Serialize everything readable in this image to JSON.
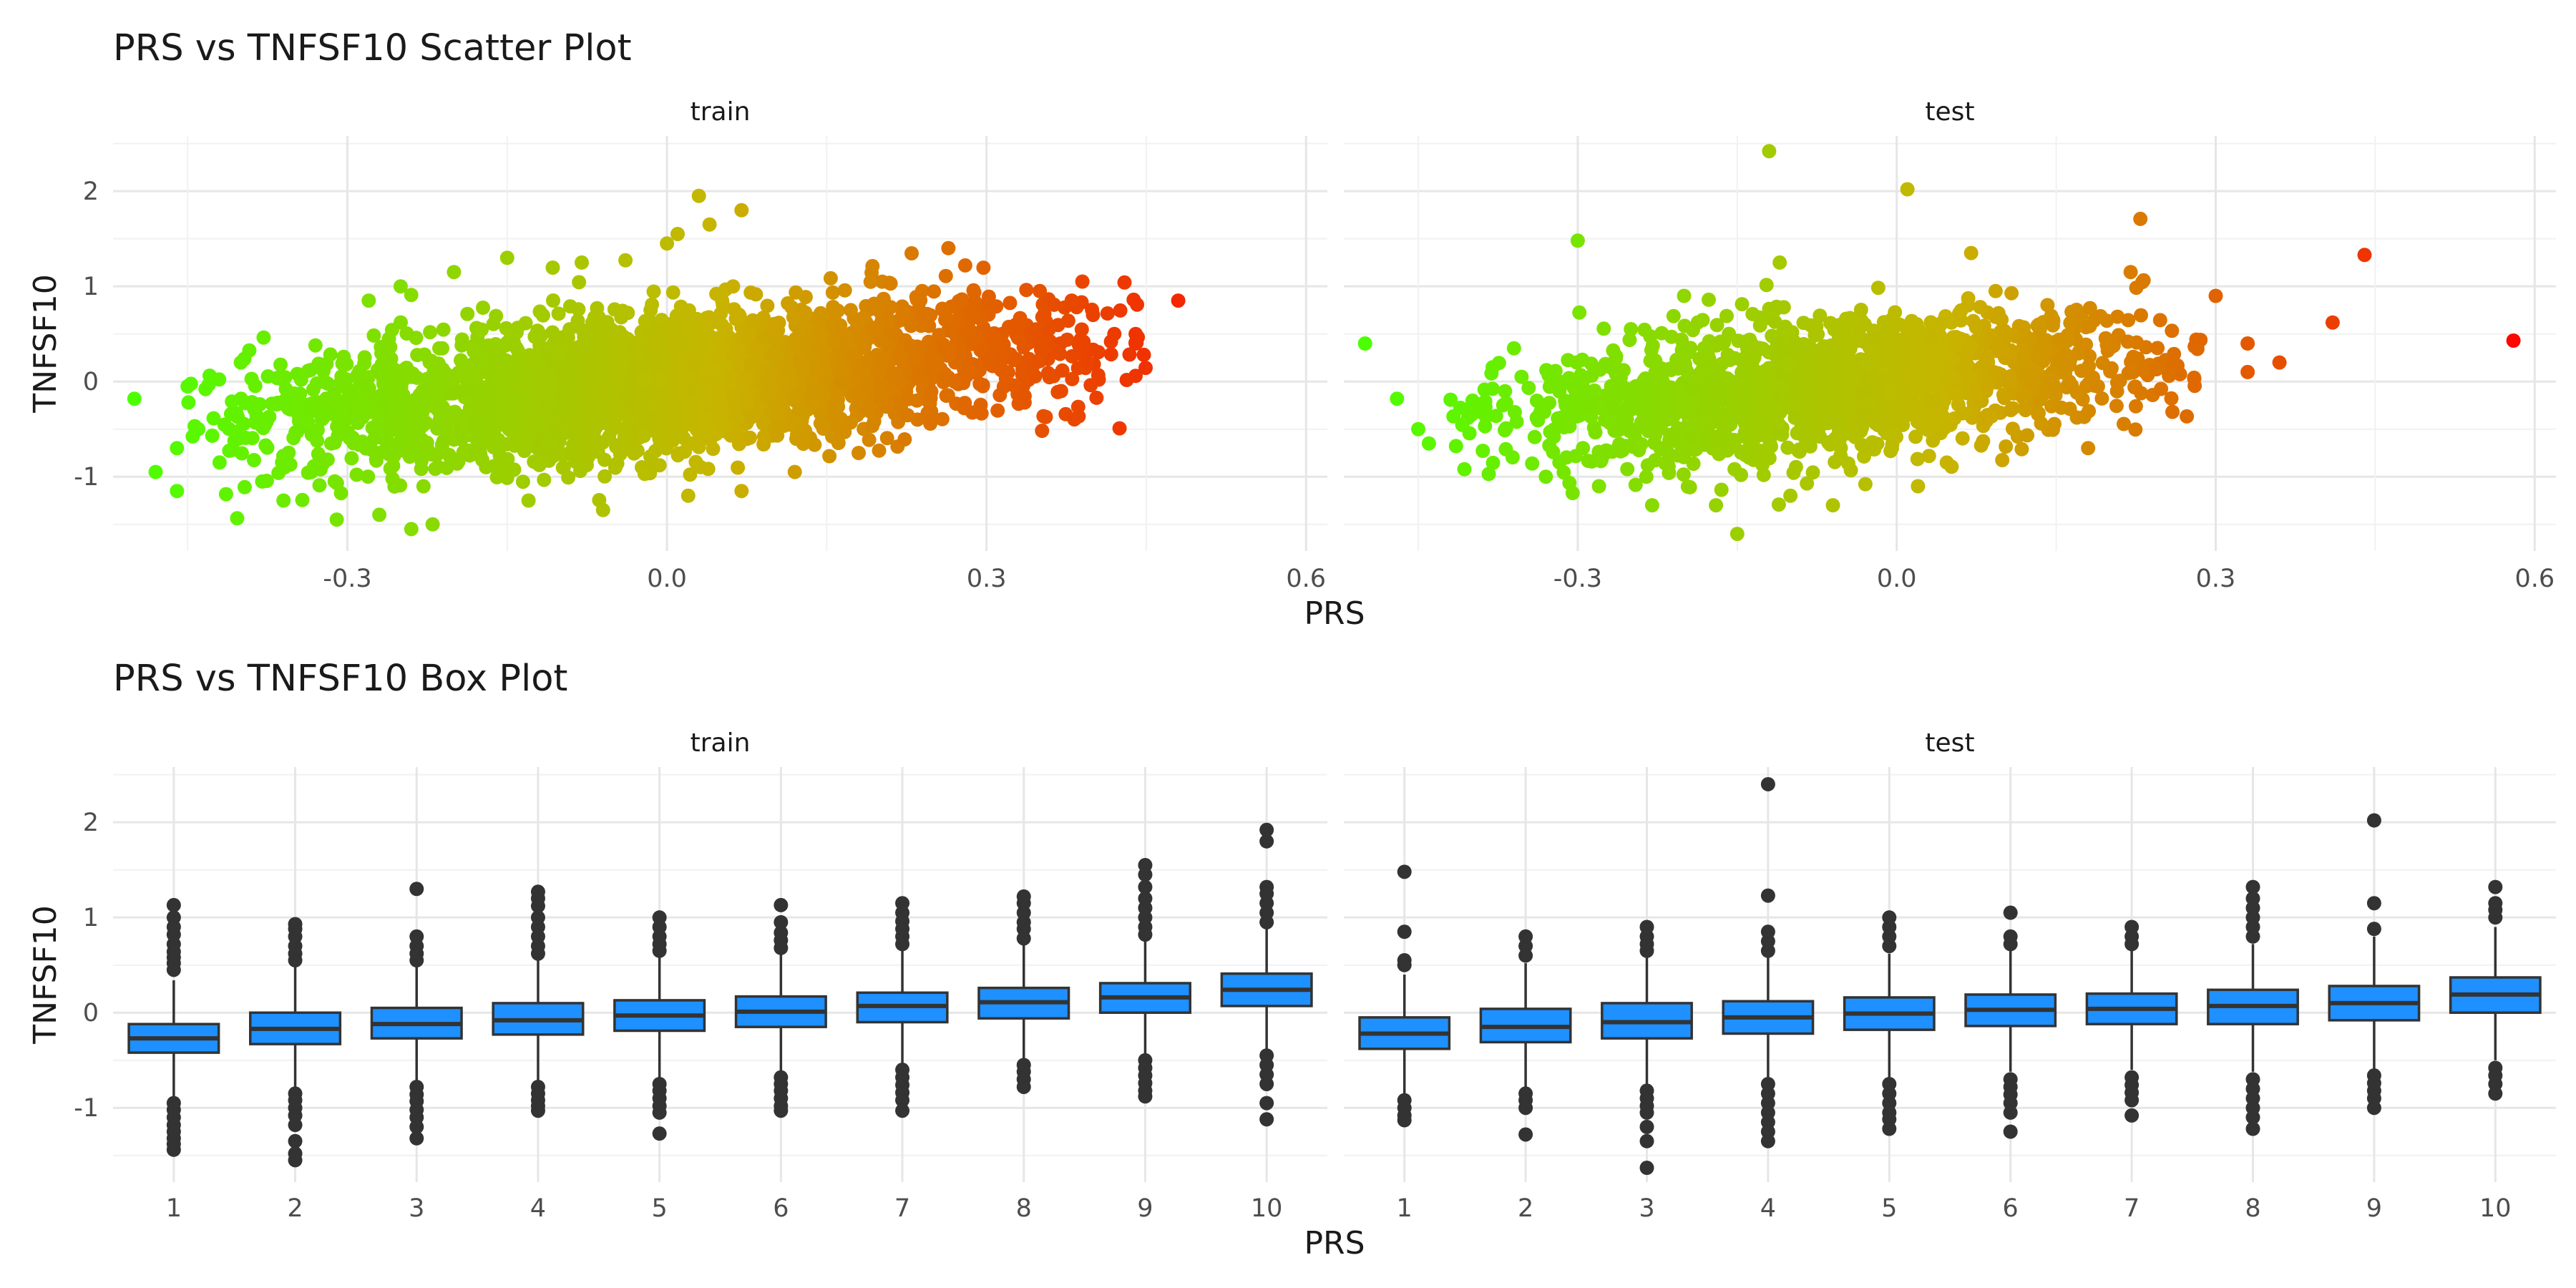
{
  "chart_data": [
    {
      "type": "scatter",
      "title": "PRS vs TNFSF10 Scatter Plot",
      "xlabel": "PRS",
      "ylabel": "TNFSF10",
      "facets": [
        "train",
        "test"
      ],
      "xlim": [
        -0.52,
        0.62
      ],
      "ylim": [
        -1.78,
        2.58
      ],
      "x_ticks": [
        -0.3,
        0.0,
        0.3,
        0.6
      ],
      "x_tick_labels": [
        "-0.3",
        "0.0",
        "0.3",
        "0.6"
      ],
      "y_ticks": [
        -1,
        0,
        1,
        2
      ],
      "y_tick_labels": [
        "-1",
        "0",
        "1",
        "2"
      ],
      "color_scale": {
        "low": "#4cff00",
        "mid": "#c8b400",
        "high": "#ff0000",
        "range": [
          -0.5,
          0.6
        ]
      },
      "grid": true,
      "legend": "none",
      "series": [
        {
          "name": "train",
          "points": [
            [
              -0.5,
              -0.18
            ],
            [
              -0.48,
              -0.95
            ],
            [
              -0.46,
              -1.15
            ],
            [
              -0.46,
              -0.7
            ],
            [
              -0.45,
              -0.05
            ],
            [
              -0.44,
              -0.5
            ],
            [
              -0.42,
              -0.85
            ],
            [
              -0.4,
              0.2
            ],
            [
              -0.38,
              -1.05
            ],
            [
              -0.36,
              -1.25
            ],
            [
              -0.33,
              0.38
            ],
            [
              -0.31,
              -1.45
            ],
            [
              -0.28,
              0.85
            ],
            [
              -0.27,
              -1.4
            ],
            [
              -0.25,
              1.0
            ],
            [
              -0.24,
              -1.55
            ],
            [
              -0.22,
              -1.5
            ],
            [
              -0.2,
              1.15
            ],
            [
              -0.15,
              1.3
            ],
            [
              -0.13,
              -1.25
            ],
            [
              -0.08,
              1.25
            ],
            [
              -0.06,
              -1.35
            ],
            [
              0.0,
              1.45
            ],
            [
              0.01,
              1.55
            ],
            [
              0.02,
              -1.2
            ],
            [
              0.03,
              1.95
            ],
            [
              0.04,
              1.65
            ],
            [
              0.07,
              1.8
            ],
            [
              0.07,
              -1.15
            ],
            [
              0.12,
              -0.95
            ],
            [
              0.18,
              -0.75
            ],
            [
              0.28,
              1.22
            ],
            [
              0.35,
              0.95
            ],
            [
              0.37,
              -0.1
            ],
            [
              0.38,
              0.85
            ],
            [
              0.39,
              1.05
            ],
            [
              0.4,
              0.7
            ],
            [
              0.42,
              0.5
            ],
            [
              0.44,
              0.4
            ],
            [
              0.44,
              0.5
            ],
            [
              0.48,
              0.85
            ]
          ],
          "cloud": {
            "x_range": [
              -0.45,
              0.45
            ],
            "y_center_at_x0": -0.02,
            "slope": 1.0,
            "y_spread": 0.35,
            "n_points": 2800
          }
        },
        {
          "name": "test",
          "points": [
            [
              -0.5,
              0.4
            ],
            [
              -0.47,
              -0.18
            ],
            [
              -0.45,
              -0.5
            ],
            [
              -0.44,
              -0.65
            ],
            [
              -0.4,
              -0.35
            ],
            [
              -0.38,
              0.15
            ],
            [
              -0.36,
              0.35
            ],
            [
              -0.33,
              -1.0
            ],
            [
              -0.3,
              1.48
            ],
            [
              -0.28,
              -1.1
            ],
            [
              -0.25,
              0.55
            ],
            [
              -0.23,
              -1.3
            ],
            [
              -0.2,
              0.9
            ],
            [
              -0.17,
              -1.3
            ],
            [
              -0.15,
              -1.6
            ],
            [
              -0.12,
              2.42
            ],
            [
              -0.11,
              1.25
            ],
            [
              -0.1,
              -1.2
            ],
            [
              -0.06,
              -1.3
            ],
            [
              0.01,
              2.02
            ],
            [
              0.02,
              -1.1
            ],
            [
              0.07,
              1.35
            ],
            [
              0.18,
              -0.7
            ],
            [
              0.22,
              1.15
            ],
            [
              0.3,
              0.9
            ],
            [
              0.33,
              0.4
            ],
            [
              0.33,
              0.1
            ],
            [
              0.36,
              0.2
            ],
            [
              0.41,
              0.62
            ],
            [
              0.44,
              1.33
            ],
            [
              0.58,
              0.43
            ]
          ],
          "cloud": {
            "x_range": [
              -0.42,
              0.3
            ],
            "y_center_at_x0": -0.02,
            "slope": 1.0,
            "y_spread": 0.35,
            "n_points": 1600
          }
        }
      ]
    },
    {
      "type": "box",
      "title": "PRS vs TNFSF10 Box Plot",
      "xlabel": "PRS",
      "ylabel": "TNFSF10",
      "facets": [
        "train",
        "test"
      ],
      "categories": [
        "1",
        "2",
        "3",
        "4",
        "5",
        "6",
        "7",
        "8",
        "9",
        "10"
      ],
      "ylim": [
        -1.78,
        2.58
      ],
      "y_ticks": [
        -1,
        0,
        1,
        2
      ],
      "y_tick_labels": [
        "-1",
        "0",
        "1",
        "2"
      ],
      "box_fill": "#1e90ff",
      "box_outline": "#333333",
      "grid": true,
      "series": [
        {
          "name": "train",
          "boxes": [
            {
              "q1": -0.42,
              "median": -0.27,
              "q3": -0.12,
              "whisker_low": -0.88,
              "whisker_high": 0.34,
              "outliers": [
                -0.95,
                -1.02,
                -1.1,
                -1.18,
                -1.25,
                -1.32,
                -1.38,
                -1.44,
                0.45,
                0.52,
                0.58,
                0.64,
                0.72,
                0.82,
                0.9,
                1.0,
                1.13
              ]
            },
            {
              "q1": -0.33,
              "median": -0.17,
              "q3": 0.0,
              "whisker_low": -0.8,
              "whisker_high": 0.48,
              "outliers": [
                -0.85,
                -0.92,
                -1.0,
                -1.08,
                -1.18,
                -1.35,
                -1.48,
                -1.55,
                0.55,
                0.62,
                0.7,
                0.8,
                0.88,
                0.93
              ]
            },
            {
              "q1": -0.27,
              "median": -0.12,
              "q3": 0.05,
              "whisker_low": -0.72,
              "whisker_high": 0.5,
              "outliers": [
                -0.78,
                -0.86,
                -0.93,
                -1.02,
                -1.1,
                -1.2,
                -1.32,
                0.55,
                0.62,
                0.7,
                0.8,
                1.3
              ]
            },
            {
              "q1": -0.23,
              "median": -0.08,
              "q3": 0.1,
              "whisker_low": -0.72,
              "whisker_high": 0.55,
              "outliers": [
                -0.78,
                -0.85,
                -0.92,
                -0.98,
                -1.03,
                0.62,
                0.7,
                0.8,
                0.9,
                1.0,
                1.12,
                1.2,
                1.27
              ]
            },
            {
              "q1": -0.19,
              "median": -0.03,
              "q3": 0.13,
              "whisker_low": -0.68,
              "whisker_high": 0.6,
              "outliers": [
                -0.75,
                -0.82,
                -0.9,
                -0.98,
                -1.05,
                -1.27,
                0.65,
                0.72,
                0.8,
                0.9,
                1.0
              ]
            },
            {
              "q1": -0.15,
              "median": 0.01,
              "q3": 0.17,
              "whisker_low": -0.62,
              "whisker_high": 0.62,
              "outliers": [
                -0.68,
                -0.75,
                -0.82,
                -0.9,
                -0.98,
                -1.03,
                0.68,
                0.76,
                0.84,
                0.95,
                1.13
              ]
            },
            {
              "q1": -0.1,
              "median": 0.07,
              "q3": 0.21,
              "whisker_low": -0.55,
              "whisker_high": 0.67,
              "outliers": [
                -0.6,
                -0.68,
                -0.76,
                -0.84,
                -0.92,
                -1.03,
                0.72,
                0.8,
                0.88,
                0.96,
                1.05,
                1.15
              ]
            },
            {
              "q1": -0.06,
              "median": 0.11,
              "q3": 0.26,
              "whisker_low": -0.5,
              "whisker_high": 0.72,
              "outliers": [
                -0.55,
                -0.62,
                -0.7,
                -0.78,
                0.78,
                0.88,
                0.95,
                1.05,
                1.15,
                1.22
              ]
            },
            {
              "q1": 0.0,
              "median": 0.16,
              "q3": 0.31,
              "whisker_low": -0.45,
              "whisker_high": 0.76,
              "outliers": [
                -0.5,
                -0.58,
                -0.66,
                -0.74,
                -0.82,
                -0.88,
                0.82,
                0.9,
                1.0,
                1.1,
                1.2,
                1.32,
                1.45,
                1.55
              ]
            },
            {
              "q1": 0.07,
              "median": 0.24,
              "q3": 0.41,
              "whisker_low": -0.38,
              "whisker_high": 0.88,
              "outliers": [
                -0.45,
                -0.55,
                -0.65,
                -0.75,
                -0.95,
                -1.12,
                0.95,
                1.05,
                1.15,
                1.25,
                1.32,
                1.8,
                1.92
              ]
            }
          ]
        },
        {
          "name": "test",
          "boxes": [
            {
              "q1": -0.38,
              "median": -0.22,
              "q3": -0.05,
              "whisker_low": -0.85,
              "whisker_high": 0.4,
              "outliers": [
                -0.92,
                -1.0,
                -1.08,
                -1.13,
                0.5,
                0.55,
                0.85,
                1.48
              ]
            },
            {
              "q1": -0.31,
              "median": -0.15,
              "q3": 0.04,
              "whisker_low": -0.78,
              "whisker_high": 0.52,
              "outliers": [
                -0.85,
                -0.92,
                -1.0,
                -1.28,
                0.6,
                0.7,
                0.8
              ]
            },
            {
              "q1": -0.27,
              "median": -0.1,
              "q3": 0.1,
              "whisker_low": -0.75,
              "whisker_high": 0.58,
              "outliers": [
                -0.82,
                -0.9,
                -0.98,
                -1.05,
                -1.2,
                -1.35,
                -1.63,
                0.65,
                0.72,
                0.8,
                0.9
              ]
            },
            {
              "q1": -0.22,
              "median": -0.05,
              "q3": 0.12,
              "whisker_low": -0.7,
              "whisker_high": 0.6,
              "outliers": [
                -0.75,
                -0.85,
                -0.95,
                -1.05,
                -1.15,
                -1.25,
                -1.35,
                0.65,
                0.75,
                0.85,
                1.23,
                2.4
              ]
            },
            {
              "q1": -0.18,
              "median": -0.01,
              "q3": 0.16,
              "whisker_low": -0.68,
              "whisker_high": 0.62,
              "outliers": [
                -0.75,
                -0.85,
                -0.95,
                -1.05,
                -1.12,
                -1.22,
                0.7,
                0.8,
                0.9,
                1.0
              ]
            },
            {
              "q1": -0.14,
              "median": 0.03,
              "q3": 0.19,
              "whisker_low": -0.62,
              "whisker_high": 0.65,
              "outliers": [
                -0.7,
                -0.78,
                -0.86,
                -0.95,
                -1.05,
                -1.25,
                0.72,
                0.8,
                1.05
              ]
            },
            {
              "q1": -0.12,
              "median": 0.04,
              "q3": 0.2,
              "whisker_low": -0.6,
              "whisker_high": 0.66,
              "outliers": [
                -0.68,
                -0.76,
                -0.84,
                -0.92,
                -1.08,
                0.72,
                0.8,
                0.9
              ]
            },
            {
              "q1": -0.12,
              "median": 0.07,
              "q3": 0.24,
              "whisker_low": -0.62,
              "whisker_high": 0.72,
              "outliers": [
                -0.7,
                -0.8,
                -0.9,
                -1.0,
                -1.1,
                -1.22,
                0.8,
                0.9,
                1.0,
                1.1,
                1.2,
                1.32
              ]
            },
            {
              "q1": -0.08,
              "median": 0.1,
              "q3": 0.28,
              "whisker_low": -0.6,
              "whisker_high": 0.8,
              "outliers": [
                -0.66,
                -0.74,
                -0.82,
                -0.9,
                -1.0,
                0.88,
                1.15,
                2.02
              ]
            },
            {
              "q1": 0.0,
              "median": 0.19,
              "q3": 0.37,
              "whisker_low": -0.5,
              "whisker_high": 0.9,
              "outliers": [
                -0.58,
                -0.66,
                -0.75,
                -0.85,
                1.0,
                1.08,
                1.15,
                1.32
              ]
            }
          ]
        }
      ]
    }
  ]
}
